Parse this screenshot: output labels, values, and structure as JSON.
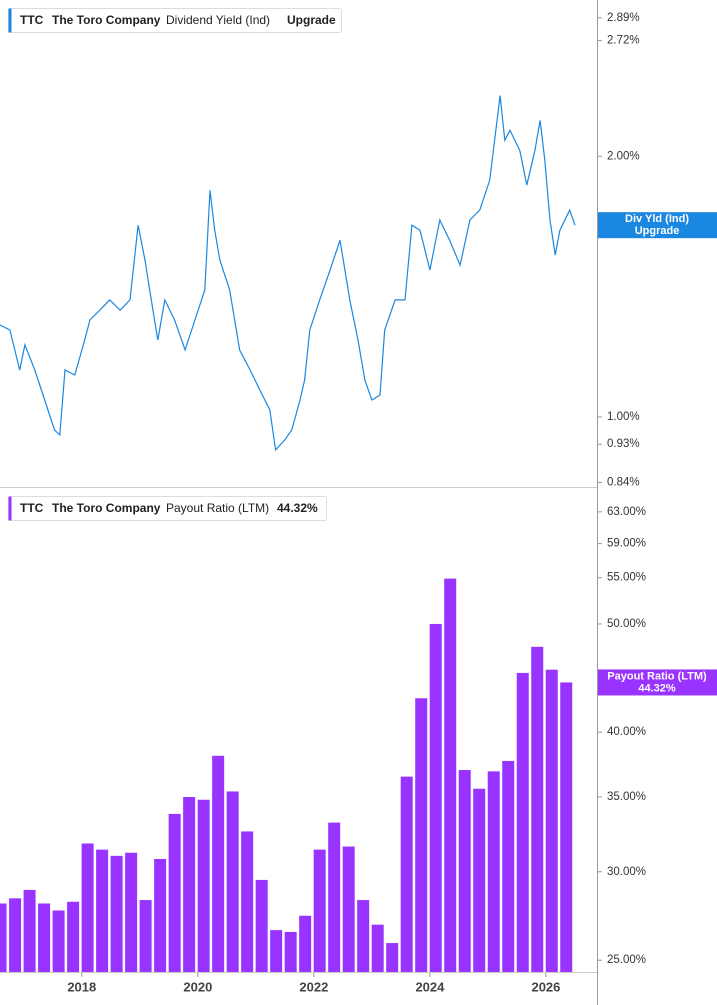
{
  "chart_data": [
    {
      "type": "line",
      "ticker": "TTC",
      "company": "The Toro Company",
      "badge": "Upgrade",
      "tag_label": "Div Yld (Ind)",
      "tag_value": "Upgrade",
      "log_scale": true,
      "xlim": [
        2016.59,
        2026.88
      ],
      "ylim": [
        0.83,
        3.03
      ],
      "yticks": [
        {
          "value": 0.84,
          "label": "0.84%"
        },
        {
          "value": 0.93,
          "label": "0.93%"
        },
        {
          "value": 1.0,
          "label": "1.00%"
        },
        {
          "value": 2.0,
          "label": "2.00%"
        },
        {
          "value": 2.72,
          "label": "2.72%"
        },
        {
          "value": 2.89,
          "label": "2.89%"
        }
      ],
      "x": [
        2016.59,
        2016.76,
        2016.93,
        2017.02,
        2017.19,
        2017.36,
        2017.53,
        2017.62,
        2017.71,
        2017.88,
        2018.05,
        2018.14,
        2018.31,
        2018.48,
        2018.66,
        2018.83,
        2018.97,
        2019.09,
        2019.17,
        2019.31,
        2019.43,
        2019.6,
        2019.78,
        2019.95,
        2020.12,
        2020.21,
        2020.29,
        2020.38,
        2020.55,
        2020.72,
        2020.9,
        2021.07,
        2021.24,
        2021.34,
        2021.5,
        2021.62,
        2021.76,
        2021.84,
        2021.93,
        2022.1,
        2022.28,
        2022.45,
        2022.62,
        2022.76,
        2022.88,
        2023.0,
        2023.14,
        2023.22,
        2023.4,
        2023.57,
        2023.69,
        2023.83,
        2024.0,
        2024.17,
        2024.34,
        2024.52,
        2024.69,
        2024.86,
        2025.03,
        2025.21,
        2025.29,
        2025.38,
        2025.55,
        2025.67,
        2025.81,
        2025.9,
        2025.98,
        2026.07,
        2026.16,
        2026.24,
        2026.41,
        2026.5
      ],
      "series": [
        {
          "name": "Dividend Yield (Ind)",
          "color": "#1a87e0",
          "values": [
            1.277,
            1.26,
            1.133,
            1.211,
            1.133,
            1.046,
            0.966,
            0.953,
            1.133,
            1.118,
            1.227,
            1.294,
            1.328,
            1.365,
            1.328,
            1.365,
            1.665,
            1.517,
            1.401,
            1.227,
            1.365,
            1.294,
            1.195,
            1.294,
            1.401,
            1.827,
            1.643,
            1.517,
            1.401,
            1.195,
            1.133,
            1.074,
            1.019,
            0.916,
            0.941,
            0.966,
            1.046,
            1.103,
            1.26,
            1.365,
            1.478,
            1.6,
            1.365,
            1.227,
            1.103,
            1.046,
            1.06,
            1.26,
            1.365,
            1.365,
            1.665,
            1.643,
            1.478,
            1.688,
            1.6,
            1.497,
            1.688,
            1.733,
            1.876,
            2.35,
            2.087,
            2.143,
            2.031,
            1.852,
            2.031,
            2.2,
            1.979,
            1.688,
            1.538,
            1.643,
            1.733,
            1.665
          ]
        }
      ]
    },
    {
      "type": "bar",
      "ticker": "TTC",
      "company": "The Toro Company",
      "badge": "44.32%",
      "tag_label": "Payout Ratio (LTM)",
      "tag_value": "44.32%",
      "log_scale": true,
      "xlim": [
        2016.59,
        2026.88
      ],
      "xticks": [
        2018,
        2020,
        2022,
        2024,
        2026
      ],
      "ylim": [
        24.4,
        65.9
      ],
      "yticks": [
        {
          "value": 25,
          "label": "25.00%"
        },
        {
          "value": 30,
          "label": "30.00%"
        },
        {
          "value": 35,
          "label": "35.00%"
        },
        {
          "value": 40,
          "label": "40.00%"
        },
        {
          "value": 50,
          "label": "50.00%"
        },
        {
          "value": 55,
          "label": "55.00%"
        },
        {
          "value": 59,
          "label": "59.00%"
        },
        {
          "value": 63,
          "label": "63.00%"
        }
      ],
      "x": [
        2016.6,
        2016.85,
        2017.1,
        2017.35,
        2017.6,
        2017.85,
        2018.1,
        2018.35,
        2018.6,
        2018.85,
        2019.1,
        2019.35,
        2019.6,
        2019.85,
        2020.1,
        2020.35,
        2020.6,
        2020.85,
        2021.1,
        2021.35,
        2021.6,
        2021.85,
        2022.1,
        2022.35,
        2022.6,
        2022.85,
        2023.1,
        2023.35,
        2023.6,
        2023.85,
        2024.1,
        2024.35,
        2024.6,
        2024.85,
        2025.1,
        2025.35,
        2025.6,
        2025.85,
        2026.1,
        2026.35
      ],
      "series": [
        {
          "name": "Payout Ratio (LTM)",
          "color": "#9933ff",
          "values": [
            28.1,
            28.4,
            28.9,
            28.1,
            27.7,
            28.2,
            31.8,
            31.4,
            31.0,
            31.2,
            28.3,
            30.8,
            33.8,
            35.0,
            34.8,
            38.1,
            35.4,
            32.6,
            29.5,
            26.6,
            26.5,
            27.4,
            31.4,
            33.2,
            31.6,
            28.3,
            26.9,
            25.9,
            36.5,
            42.9,
            50.0,
            54.9,
            37.0,
            35.6,
            36.9,
            37.7,
            45.2,
            47.7,
            45.5,
            44.32
          ]
        }
      ]
    }
  ]
}
